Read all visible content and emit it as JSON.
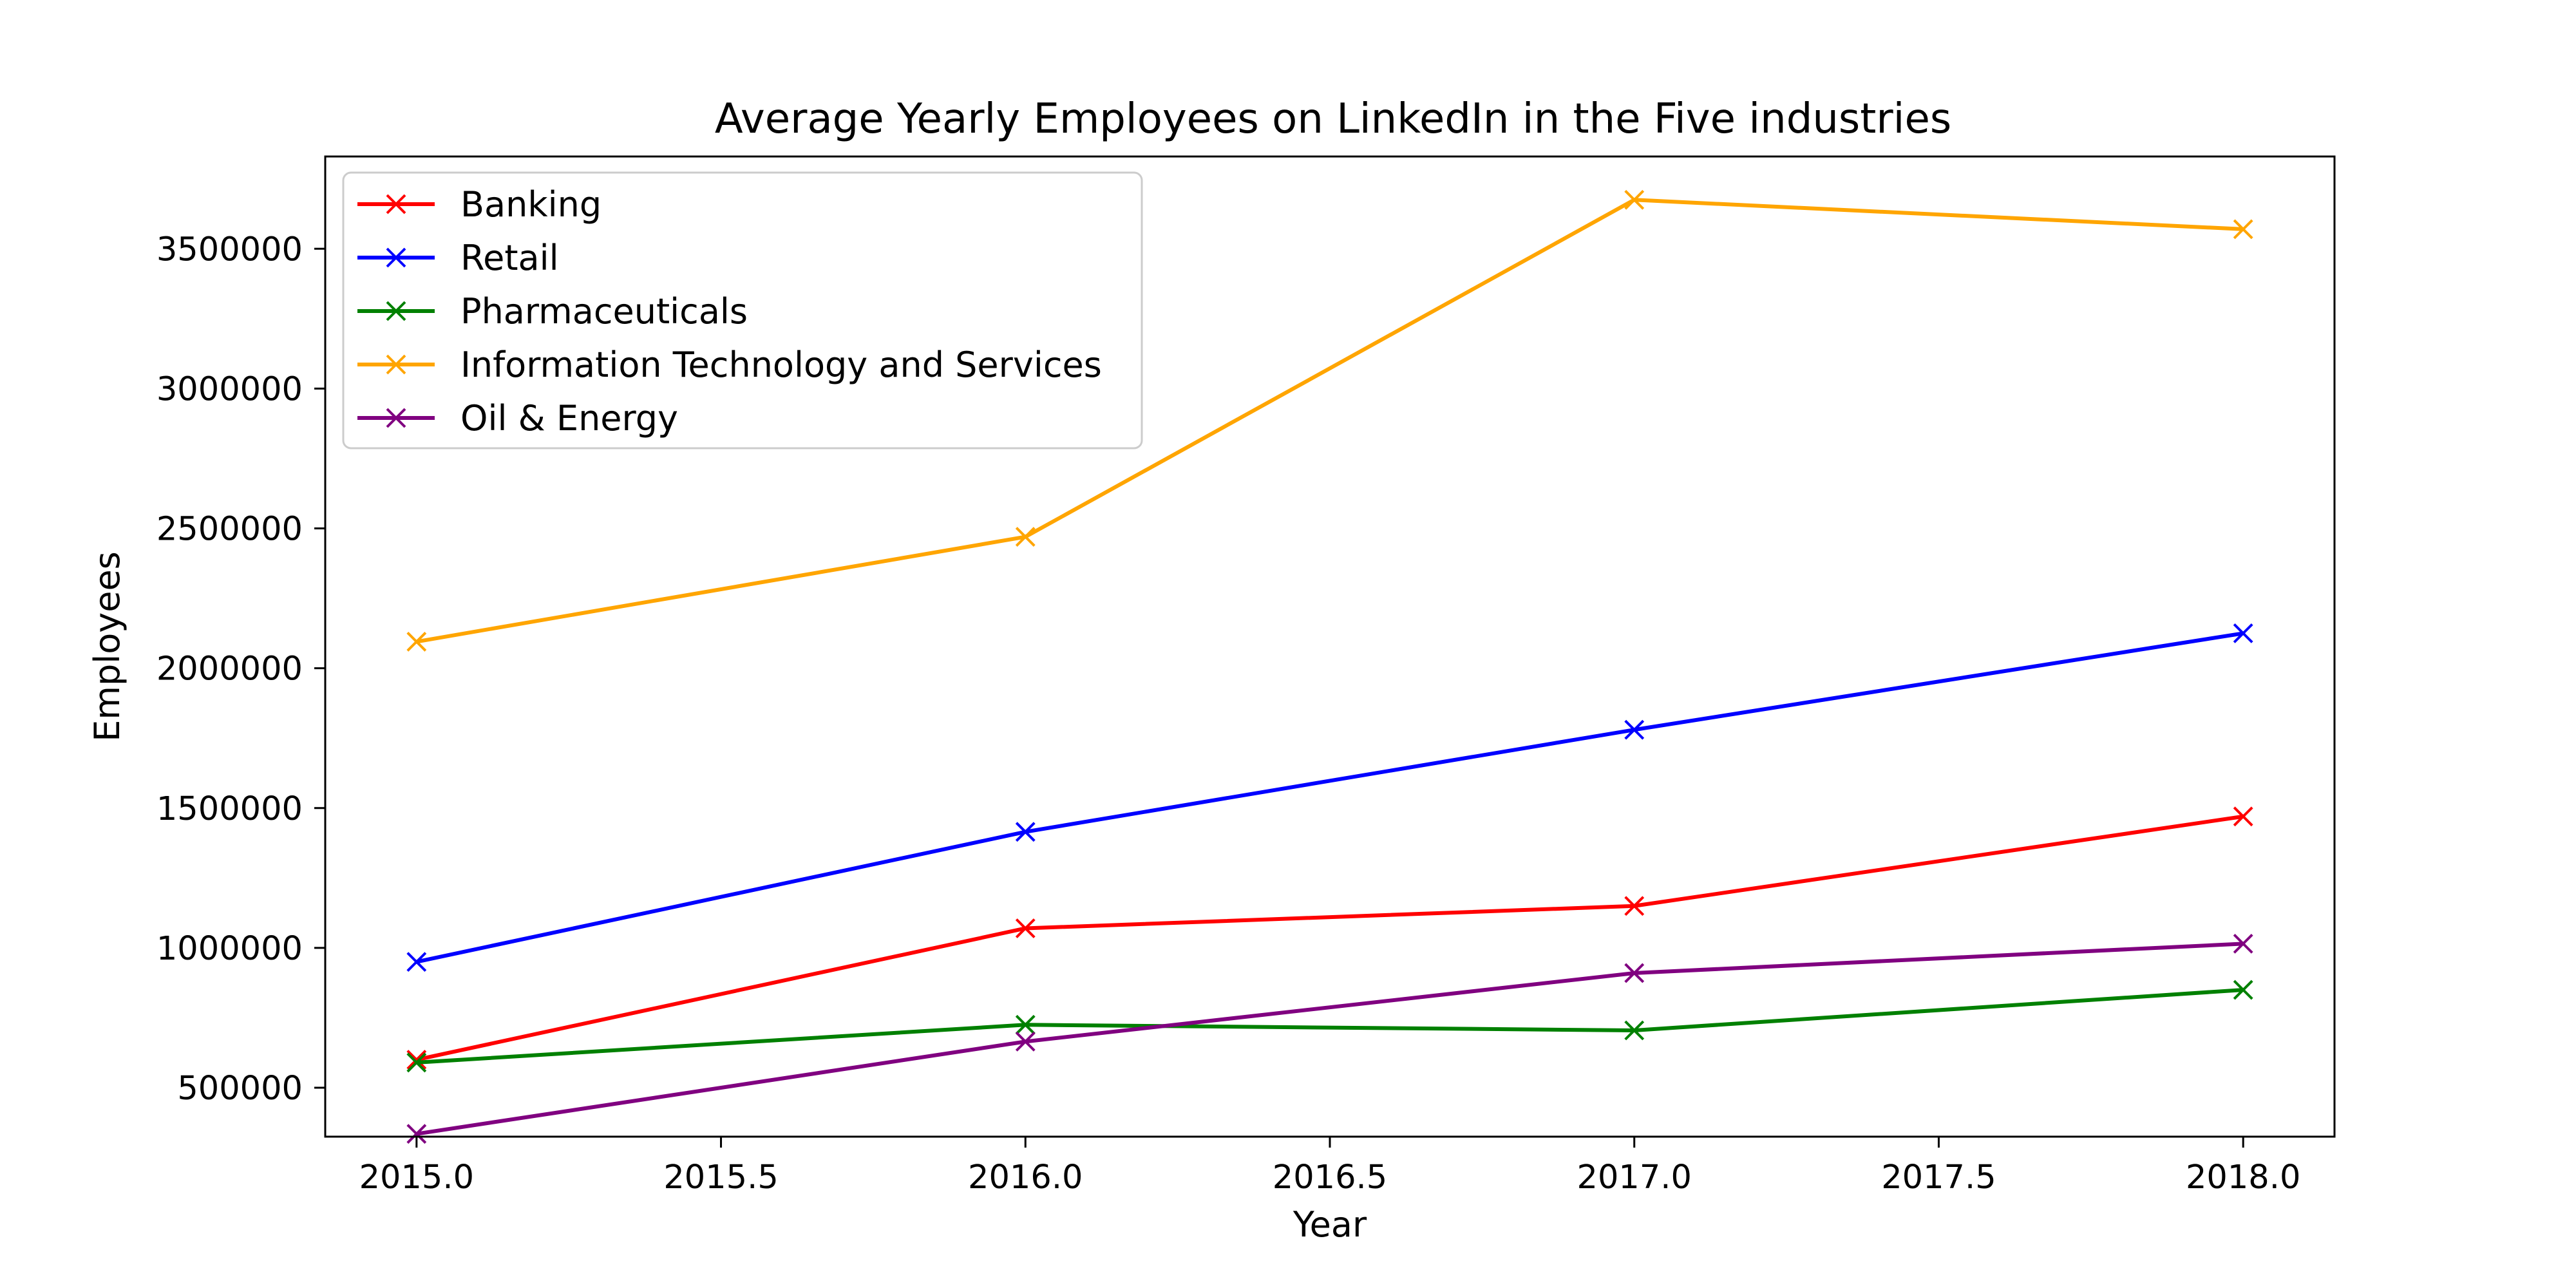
{
  "chart_data": {
    "type": "line",
    "title": "Average Yearly Employees on LinkedIn in the Five industries",
    "xlabel": "Year",
    "ylabel": "Employees",
    "x": [
      2015,
      2016,
      2017,
      2018
    ],
    "xlim": [
      2014.85,
      2018.15
    ],
    "ylim": [
      325000,
      3830000
    ],
    "xticks": [
      2015.0,
      2015.5,
      2016.0,
      2016.5,
      2017.0,
      2017.5,
      2018.0
    ],
    "xtick_labels": [
      "2015.0",
      "2015.5",
      "2016.0",
      "2016.5",
      "2017.0",
      "2017.5",
      "2018.0"
    ],
    "yticks": [
      500000,
      1000000,
      1500000,
      2000000,
      2500000,
      3000000,
      3500000
    ],
    "ytick_labels": [
      "500000",
      "1000000",
      "1500000",
      "2000000",
      "2500000",
      "3000000",
      "3500000"
    ],
    "grid": false,
    "legend_position": "upper-left",
    "marker": "x",
    "series": [
      {
        "name": "Banking",
        "color": "#ff0000",
        "values": [
          600000,
          1070000,
          1150000,
          1470000
        ]
      },
      {
        "name": "Retail",
        "color": "#0000ff",
        "values": [
          950000,
          1415000,
          1780000,
          2125000
        ]
      },
      {
        "name": "Pharmaceuticals",
        "color": "#008000",
        "values": [
          590000,
          725000,
          705000,
          850000
        ]
      },
      {
        "name": "Information Technology and Services",
        "color": "#ffa500",
        "values": [
          2095000,
          2470000,
          3675000,
          3570000
        ]
      },
      {
        "name": "Oil & Energy",
        "color": "#800080",
        "values": [
          335000,
          665000,
          910000,
          1015000
        ]
      }
    ]
  }
}
